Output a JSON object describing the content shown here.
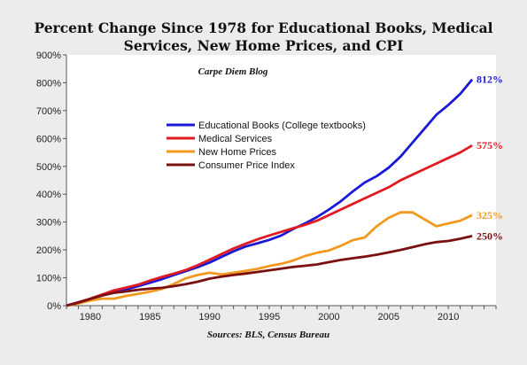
{
  "chart_data": {
    "type": "line",
    "title": "Percent Change Since 1978 for Educational Books, Medical Services, New Home Prices, and CPI",
    "subtitle": "Carpe Diem Blog",
    "source": "Sources: BLS, Census Bureau",
    "xlim": [
      1978,
      2014
    ],
    "ylim": [
      0,
      900
    ],
    "x_ticks": [
      1980,
      1985,
      1990,
      1995,
      2000,
      2005,
      2010
    ],
    "y_ticks": [
      "0%",
      "100%",
      "200%",
      "300%",
      "400%",
      "500%",
      "600%",
      "700%",
      "800%",
      "900%"
    ],
    "grid": false,
    "legend_position": "upper-left-center",
    "x": [
      1978,
      1979,
      1980,
      1981,
      1982,
      1983,
      1984,
      1985,
      1986,
      1987,
      1988,
      1989,
      1990,
      1991,
      1992,
      1993,
      1994,
      1995,
      1996,
      1997,
      1998,
      1999,
      2000,
      2001,
      2002,
      2003,
      2004,
      2005,
      2006,
      2007,
      2008,
      2009,
      2010,
      2011,
      2012
    ],
    "series": [
      {
        "name": "Educational Books  (College textbooks)",
        "color": "#1a1ad6",
        "values": [
          0,
          12,
          24,
          36,
          48,
          58,
          70,
          82,
          95,
          110,
          124,
          138,
          155,
          175,
          195,
          212,
          224,
          236,
          252,
          275,
          295,
          318,
          345,
          375,
          410,
          442,
          465,
          495,
          535,
          585,
          635,
          685,
          720,
          760,
          812
        ],
        "end_label": "812%"
      },
      {
        "name": "Medical Services",
        "color": "#e11b22",
        "values": [
          0,
          12,
          25,
          40,
          55,
          65,
          75,
          90,
          103,
          115,
          128,
          145,
          165,
          185,
          205,
          222,
          238,
          252,
          265,
          278,
          290,
          305,
          325,
          345,
          365,
          385,
          405,
          425,
          450,
          470,
          490,
          510,
          530,
          550,
          575
        ],
        "end_label": "575%"
      },
      {
        "name": "New Home Prices",
        "color": "#f39a1e",
        "values": [
          0,
          8,
          18,
          25,
          25,
          35,
          42,
          50,
          60,
          78,
          98,
          110,
          118,
          112,
          118,
          125,
          132,
          142,
          150,
          162,
          178,
          190,
          198,
          215,
          235,
          245,
          285,
          315,
          335,
          335,
          310,
          285,
          295,
          305,
          325
        ],
        "end_label": "325%"
      },
      {
        "name": "Consumer Price Index",
        "color": "#7a1010",
        "values": [
          0,
          11,
          24,
          37,
          46,
          51,
          57,
          61,
          64,
          70,
          77,
          86,
          97,
          104,
          110,
          115,
          121,
          127,
          133,
          139,
          143,
          148,
          156,
          164,
          170,
          176,
          183,
          191,
          200,
          210,
          220,
          228,
          232,
          240,
          250
        ],
        "end_label": "250%"
      }
    ]
  }
}
